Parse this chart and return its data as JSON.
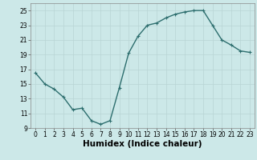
{
  "x": [
    0,
    1,
    2,
    3,
    4,
    5,
    6,
    7,
    8,
    9,
    10,
    11,
    12,
    13,
    14,
    15,
    16,
    17,
    18,
    19,
    20,
    21,
    22,
    23
  ],
  "y": [
    16.5,
    15.0,
    14.3,
    13.2,
    11.5,
    11.7,
    10.0,
    9.5,
    10.0,
    14.5,
    19.2,
    21.5,
    23.0,
    23.3,
    24.0,
    24.5,
    24.8,
    25.0,
    25.0,
    23.0,
    21.0,
    20.3,
    19.5,
    19.3
  ],
  "line_color": "#2d6e6e",
  "marker": "+",
  "marker_size": 3,
  "marker_linewidth": 0.8,
  "background_color": "#cce8e8",
  "grid_color": "#b8d4d4",
  "xlabel": "Humidex (Indice chaleur)",
  "xlim": [
    -0.5,
    23.5
  ],
  "ylim": [
    9,
    26
  ],
  "yticks": [
    9,
    11,
    13,
    15,
    17,
    19,
    21,
    23,
    25
  ],
  "xticks": [
    0,
    1,
    2,
    3,
    4,
    5,
    6,
    7,
    8,
    9,
    10,
    11,
    12,
    13,
    14,
    15,
    16,
    17,
    18,
    19,
    20,
    21,
    22,
    23
  ],
  "tick_labelsize": 5.5,
  "xlabel_fontsize": 7.5,
  "line_width": 1.0
}
